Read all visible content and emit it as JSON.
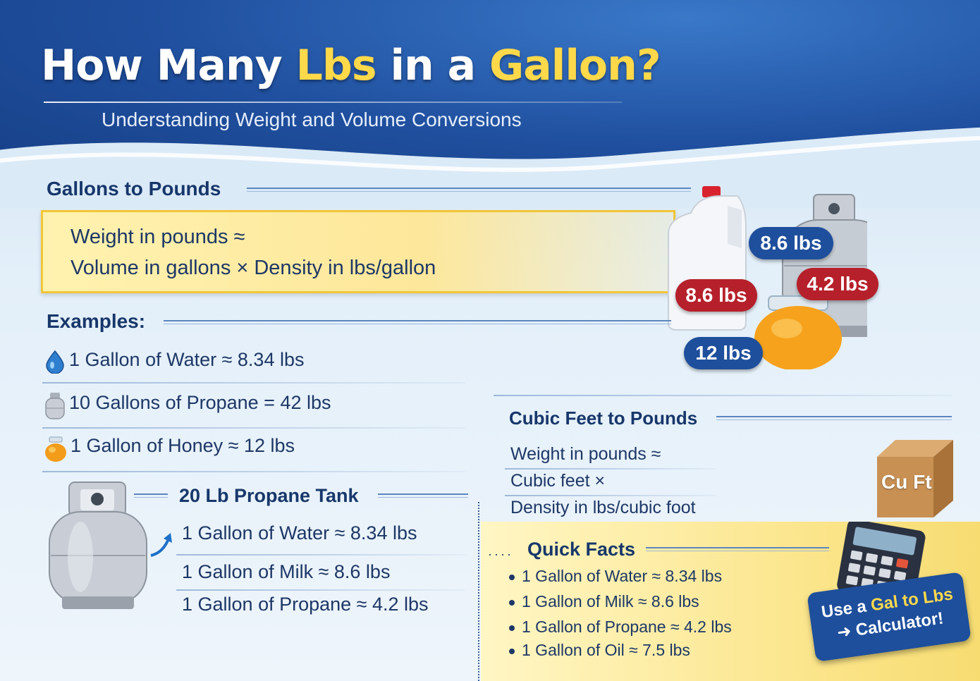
{
  "header": {
    "title_part1": "How Many ",
    "title_highlight1": "Lbs",
    "title_part2": " in a ",
    "title_highlight2": "Gallon?",
    "subtitle": "Understanding Weight and Volume Conversions"
  },
  "gallons_to_pounds": {
    "heading": "Gallons to Pounds",
    "formula_line1": "Weight in pounds ≈",
    "formula_line2": "Volume in gallons × Density in lbs/gallon"
  },
  "examples": {
    "heading": "Examples:",
    "items": [
      {
        "icon": "water-drop-icon",
        "label": "1 Gallon of Water ≈ 8.34 lbs"
      },
      {
        "icon": "propane-tank-icon",
        "label": "10 Gallons of Propane = 42 lbs"
      },
      {
        "icon": "honey-jar-icon",
        "label": "1 Gallon of Honey ≈ 12 lbs"
      }
    ]
  },
  "propane_tank": {
    "heading": "20 Lb Propane Tank",
    "items": [
      "1 Gallon of Water ≈ 8.34 lbs",
      "1 Gallon of Milk ≈ 8.6 lbs",
      "1 Gallon of Propane ≈ 4.2 lbs"
    ]
  },
  "product_labels": {
    "milk": "8.6 lbs",
    "tank_blue": "8.6 lbs",
    "tank_red": "4.2 lbs",
    "honey": "12 lbs"
  },
  "cubic_feet": {
    "heading": "Cubic Feet to Pounds",
    "line1": "Weight in pounds ≈",
    "line2": "Cubic feet ×",
    "line3": "Density in lbs/cubic foot",
    "box_label": "Cu Ft"
  },
  "quick_facts": {
    "heading": "Quick Facts",
    "items": [
      "1 Gallon of Water ≈ 8.34 lbs",
      "1 Gallon of Milk ≈ 8.6 lbs",
      "1 Gallon of Propane ≈ 4.2 lbs",
      "1 Gallon of Oil ≈ 7.5 lbs"
    ]
  },
  "calculator_cta": {
    "line1_prefix": "Use a ",
    "line1_highlight": "Gal to Lbs",
    "line2": "Calculator!"
  },
  "colors": {
    "header_blue": "#1f4f9e",
    "accent_yellow": "#ffd94a",
    "badge_red": "#b6202b",
    "badge_blue": "#1e4f9c"
  }
}
